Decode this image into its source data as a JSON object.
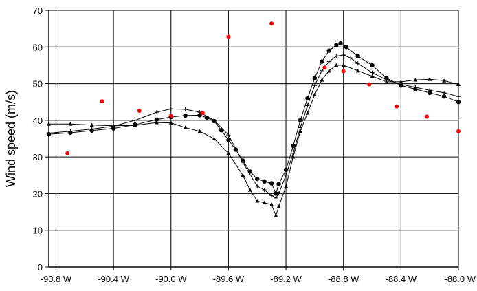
{
  "chart_data": {
    "type": "scatter",
    "title": "",
    "xlabel": "",
    "ylabel": "Wind speed (m/s)",
    "xlim": [
      -90.85,
      -88.0
    ],
    "ylim": [
      0,
      70
    ],
    "x_ticks": [
      -90.8,
      -90.4,
      -90.0,
      -89.6,
      -89.2,
      -88.8,
      -88.4,
      -88.0
    ],
    "x_tick_labels": [
      "-90.8 W",
      "-90.4 W",
      "-90.0 W",
      "-89.6 W",
      "-89.2 W",
      "-88.8 W",
      "-88.4 W",
      "-88.0 W"
    ],
    "y_ticks": [
      0,
      10,
      20,
      30,
      40,
      50,
      60,
      70
    ],
    "y_tick_labels": [
      "0",
      "10",
      "20",
      "30",
      "40",
      "50",
      "60",
      "70"
    ],
    "grid": true,
    "legend": "none",
    "series": [
      {
        "marker": "circle",
        "color": "#000000",
        "line": true,
        "points": [
          [
            -90.85,
            36.2
          ],
          [
            -90.7,
            36.6
          ],
          [
            -90.55,
            37.2
          ],
          [
            -90.4,
            37.8
          ],
          [
            -90.25,
            38.8
          ],
          [
            -90.1,
            40.2
          ],
          [
            -90.0,
            40.9
          ],
          [
            -89.9,
            41.3
          ],
          [
            -89.8,
            41.4
          ],
          [
            -89.75,
            40.7
          ],
          [
            -89.7,
            39.8
          ],
          [
            -89.65,
            37.3
          ],
          [
            -89.6,
            34.6
          ],
          [
            -89.55,
            32.0
          ],
          [
            -89.5,
            29.0
          ],
          [
            -89.45,
            26.0
          ],
          [
            -89.4,
            24.0
          ],
          [
            -89.35,
            23.3
          ],
          [
            -89.3,
            22.8
          ],
          [
            -89.27,
            20.0
          ],
          [
            -89.25,
            22.6
          ],
          [
            -89.2,
            26.5
          ],
          [
            -89.15,
            33.0
          ],
          [
            -89.1,
            40.0
          ],
          [
            -89.05,
            46.0
          ],
          [
            -89.0,
            51.5
          ],
          [
            -88.95,
            56.0
          ],
          [
            -88.9,
            59.0
          ],
          [
            -88.85,
            60.5
          ],
          [
            -88.82,
            61.0
          ],
          [
            -88.78,
            60.0
          ],
          [
            -88.7,
            57.5
          ],
          [
            -88.6,
            55.0
          ],
          [
            -88.5,
            51.5
          ],
          [
            -88.4,
            49.5
          ],
          [
            -88.3,
            48.5
          ],
          [
            -88.2,
            47.5
          ],
          [
            -88.1,
            46.5
          ],
          [
            -88.0,
            45.0
          ]
        ]
      },
      {
        "marker": "plus",
        "color": "#000000",
        "line": true,
        "points": [
          [
            -90.85,
            36.5
          ],
          [
            -90.7,
            37.0
          ],
          [
            -90.55,
            37.6
          ],
          [
            -90.4,
            38.4
          ],
          [
            -90.25,
            40.0
          ],
          [
            -90.1,
            42.2
          ],
          [
            -90.0,
            43.1
          ],
          [
            -89.9,
            43.0
          ],
          [
            -89.8,
            42.2
          ],
          [
            -89.7,
            40.0
          ],
          [
            -89.6,
            36.0
          ],
          [
            -89.5,
            28.5
          ],
          [
            -89.4,
            22.0
          ],
          [
            -89.35,
            21.0
          ],
          [
            -89.3,
            19.5
          ],
          [
            -89.27,
            18.8
          ],
          [
            -89.25,
            20.0
          ],
          [
            -89.2,
            25.0
          ],
          [
            -89.15,
            31.0
          ],
          [
            -89.1,
            38.0
          ],
          [
            -89.05,
            44.0
          ],
          [
            -89.0,
            49.5
          ],
          [
            -88.95,
            53.5
          ],
          [
            -88.9,
            56.0
          ],
          [
            -88.85,
            57.5
          ],
          [
            -88.8,
            57.8
          ],
          [
            -88.75,
            57.0
          ],
          [
            -88.7,
            55.5
          ],
          [
            -88.6,
            53.0
          ],
          [
            -88.5,
            51.0
          ],
          [
            -88.4,
            49.8
          ],
          [
            -88.3,
            49.0
          ],
          [
            -88.2,
            48.2
          ],
          [
            -88.1,
            47.5
          ],
          [
            -88.0,
            46.5
          ]
        ]
      },
      {
        "marker": "triangle",
        "color": "#000000",
        "line": true,
        "points": [
          [
            -90.85,
            39.0
          ],
          [
            -90.7,
            39.0
          ],
          [
            -90.55,
            38.7
          ],
          [
            -90.4,
            38.5
          ],
          [
            -90.25,
            38.6
          ],
          [
            -90.1,
            39.4
          ],
          [
            -90.0,
            39.3
          ],
          [
            -89.9,
            38.0
          ],
          [
            -89.8,
            37.0
          ],
          [
            -89.7,
            35.0
          ],
          [
            -89.6,
            31.0
          ],
          [
            -89.5,
            25.0
          ],
          [
            -89.45,
            21.0
          ],
          [
            -89.4,
            18.0
          ],
          [
            -89.35,
            17.5
          ],
          [
            -89.3,
            17.0
          ],
          [
            -89.27,
            14.0
          ],
          [
            -89.25,
            16.5
          ],
          [
            -89.2,
            22.0
          ],
          [
            -89.15,
            30.0
          ],
          [
            -89.1,
            37.0
          ],
          [
            -89.05,
            42.0
          ],
          [
            -89.0,
            47.0
          ],
          [
            -88.95,
            51.0
          ],
          [
            -88.9,
            53.5
          ],
          [
            -88.85,
            55.0
          ],
          [
            -88.8,
            55.0
          ],
          [
            -88.7,
            53.5
          ],
          [
            -88.6,
            52.0
          ],
          [
            -88.5,
            50.5
          ],
          [
            -88.4,
            50.5
          ],
          [
            -88.3,
            51.0
          ],
          [
            -88.2,
            51.2
          ],
          [
            -88.1,
            50.8
          ],
          [
            -88.0,
            49.8
          ]
        ]
      },
      {
        "marker": "dot",
        "color": "#ff0000",
        "line": false,
        "points": [
          [
            -90.72,
            31.0
          ],
          [
            -90.48,
            45.2
          ],
          [
            -90.22,
            42.6
          ],
          [
            -90.0,
            41.2
          ],
          [
            -89.78,
            42.0
          ],
          [
            -89.6,
            62.8
          ],
          [
            -89.3,
            66.4
          ],
          [
            -88.93,
            54.4
          ],
          [
            -88.8,
            53.4
          ],
          [
            -88.62,
            49.8
          ],
          [
            -88.43,
            43.8
          ],
          [
            -88.22,
            41.0
          ],
          [
            -88.0,
            37.0
          ]
        ]
      }
    ]
  }
}
